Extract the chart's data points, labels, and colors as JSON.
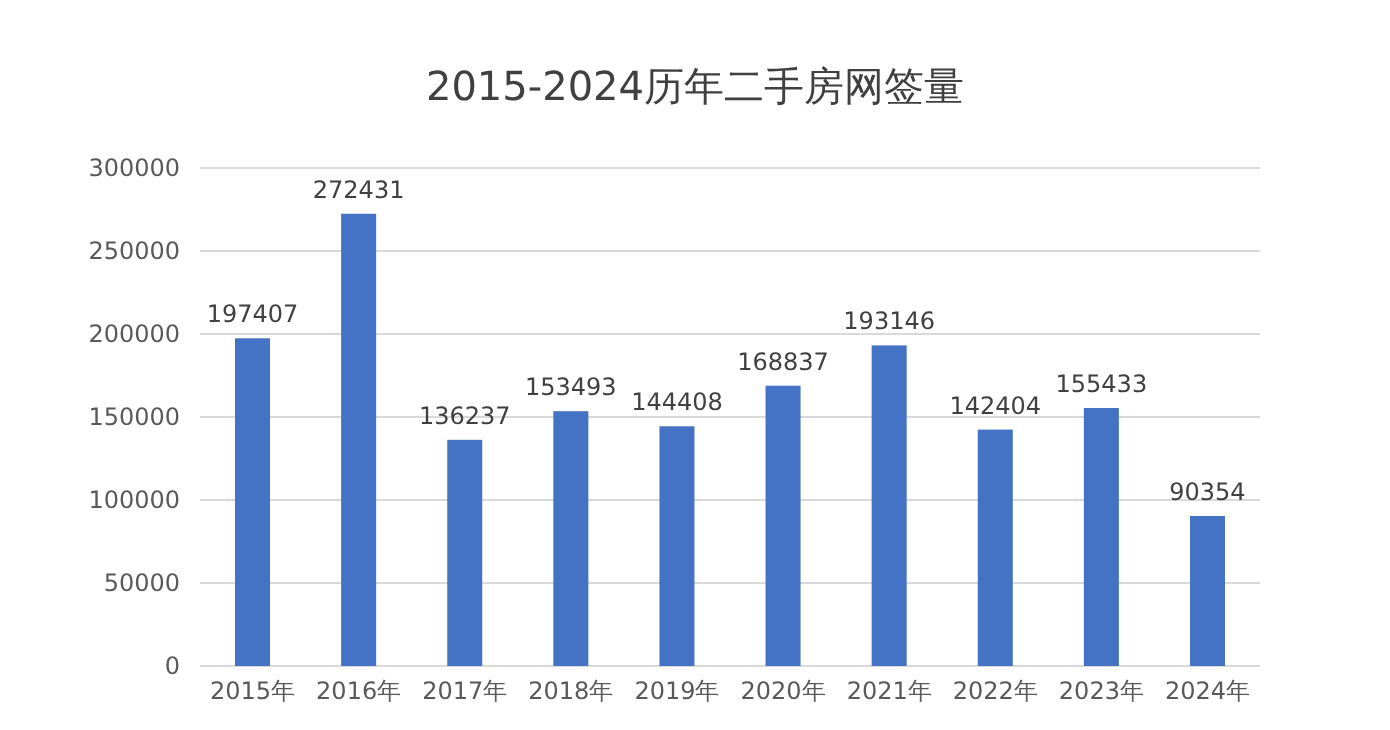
{
  "chart_data": {
    "type": "bar",
    "title": "2015-2024历年二手房网签量",
    "categories": [
      "2015年",
      "2016年",
      "2017年",
      "2018年",
      "2019年",
      "2020年",
      "2021年",
      "2022年",
      "2023年",
      "2024年"
    ],
    "values": [
      197407,
      272431,
      136237,
      153493,
      144408,
      168837,
      193146,
      142404,
      155433,
      90354
    ],
    "color": "#4472c4",
    "data_labels": true,
    "grid": "y",
    "ylim": [
      0,
      300000
    ],
    "yticks": [
      0,
      50000,
      100000,
      150000,
      200000,
      250000,
      300000
    ]
  }
}
